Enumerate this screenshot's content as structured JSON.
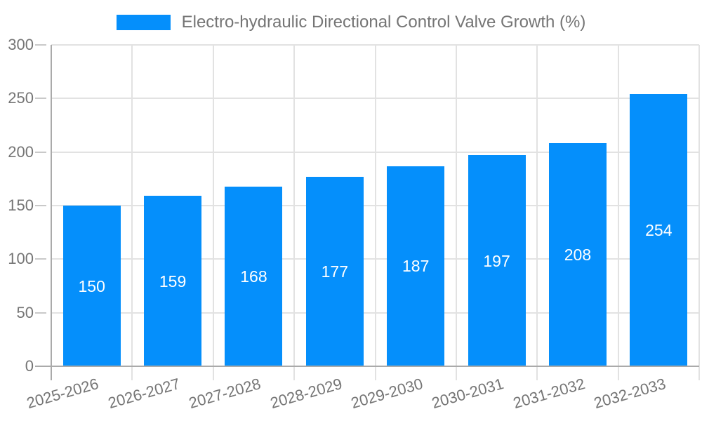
{
  "legend": {
    "label": "Electro-hydraulic Directional Control Valve Growth (%)"
  },
  "chart_data": {
    "type": "bar",
    "title": "Electro-hydraulic Directional Control Valve Growth (%)",
    "categories": [
      "2025-2026",
      "2026-2027",
      "2027-2028",
      "2028-2029",
      "2029-2030",
      "2030-2031",
      "2031-2032",
      "2032-2033"
    ],
    "values": [
      150,
      159,
      168,
      177,
      187,
      197,
      208,
      254
    ],
    "series": [
      {
        "name": "Electro-hydraulic Directional Control Valve Growth (%)",
        "values": [
          150,
          159,
          168,
          177,
          187,
          197,
          208,
          254
        ]
      }
    ],
    "xlabel": "",
    "ylabel": "",
    "ylim": [
      0,
      300
    ],
    "yticks": [
      0,
      50,
      100,
      150,
      200,
      250,
      300
    ],
    "grid": true,
    "legend_position": "top",
    "value_label_position": "inside-center",
    "colors": {
      "bar": "#058FFB",
      "value_label": "#FFFFFF",
      "axis_line": "#AAAAAA",
      "gridline": "#E2E2E2",
      "tick_dash": "#C9C9C9",
      "tick_text": "#757575",
      "legend_text": "#757575",
      "background": "#FFFFFF"
    }
  }
}
